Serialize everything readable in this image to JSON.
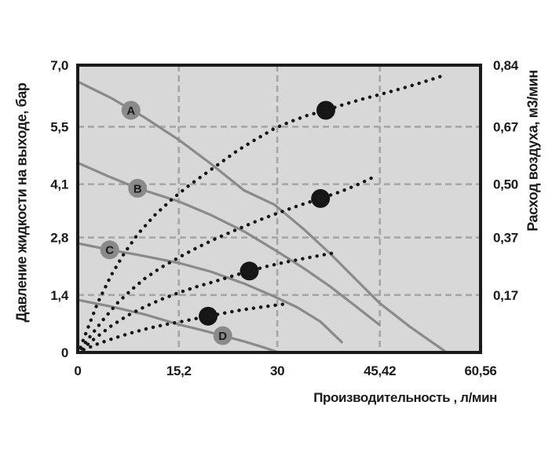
{
  "chart_data": {
    "type": "line",
    "title": "",
    "xlabel": "Производительность , л/мин",
    "ylabel_left": "Давление жидкости на выходе, бар",
    "ylabel_right": "Расход воздуха, м3/мин",
    "x_axis": {
      "min": 0,
      "max": 60.56,
      "ticks": [
        {
          "v": 0,
          "label": "0"
        },
        {
          "v": 15.2,
          "label": "15,2"
        },
        {
          "v": 30,
          "label": "30"
        },
        {
          "v": 45.42,
          "label": "45,42"
        },
        {
          "v": 60.56,
          "label": "60,56"
        }
      ]
    },
    "y_left": {
      "min": 0,
      "max": 7.0,
      "ticks": [
        {
          "v": 7.0,
          "label": "7,0"
        },
        {
          "v": 5.5,
          "label": "5,5"
        },
        {
          "v": 4.1,
          "label": "4,1"
        },
        {
          "v": 2.8,
          "label": "2,8"
        },
        {
          "v": 1.4,
          "label": "1,4"
        },
        {
          "v": 0,
          "label": "0"
        }
      ]
    },
    "y_right": {
      "min": 0,
      "max": 0.84,
      "ticks": [
        {
          "at_left_value": 7.0,
          "label": "0,84"
        },
        {
          "at_left_value": 5.5,
          "label": "0,67"
        },
        {
          "at_left_value": 4.1,
          "label": "0,50"
        },
        {
          "at_left_value": 2.8,
          "label": "0,37"
        },
        {
          "at_left_value": 1.4,
          "label": "0,17"
        }
      ]
    },
    "gridlines": {
      "horizontal_at_left_values": [
        5.5,
        4.1,
        2.8,
        1.4
      ],
      "vertical_at_x_values": [
        15.2,
        30,
        45.42
      ]
    },
    "legend_position": "none",
    "grid": true,
    "series": [
      {
        "id": "A",
        "kind": "pressure",
        "style": "solid",
        "axis": "left",
        "marker": {
          "x": 8.0,
          "y": 5.9,
          "fill": "gray"
        },
        "points": [
          [
            0,
            6.6
          ],
          [
            5,
            6.2
          ],
          [
            10,
            5.73
          ],
          [
            15.2,
            5.18
          ],
          [
            20,
            4.6
          ],
          [
            25,
            3.95
          ],
          [
            29.6,
            3.6
          ],
          [
            34,
            3.0
          ],
          [
            38,
            2.4
          ],
          [
            42,
            1.75
          ],
          [
            45.4,
            1.2
          ],
          [
            50,
            0.62
          ],
          [
            55.2,
            0.03
          ]
        ]
      },
      {
        "id": "B",
        "kind": "pressure",
        "style": "solid",
        "axis": "left",
        "marker": {
          "x": 9.0,
          "y": 4.0,
          "fill": "gray"
        },
        "points": [
          [
            0,
            4.62
          ],
          [
            4.5,
            4.3
          ],
          [
            9,
            4.0
          ],
          [
            15.2,
            3.68
          ],
          [
            20,
            3.35
          ],
          [
            25,
            2.95
          ],
          [
            29.6,
            2.5
          ],
          [
            34,
            2.05
          ],
          [
            38,
            1.6
          ],
          [
            42,
            1.1
          ],
          [
            45.3,
            0.68
          ]
        ]
      },
      {
        "id": "C",
        "kind": "pressure",
        "style": "solid",
        "axis": "left",
        "marker": {
          "x": 4.8,
          "y": 2.5,
          "fill": "gray"
        },
        "points": [
          [
            0,
            2.66
          ],
          [
            4.8,
            2.5
          ],
          [
            9,
            2.38
          ],
          [
            15.2,
            2.18
          ],
          [
            20,
            1.97
          ],
          [
            25,
            1.68
          ],
          [
            29.6,
            1.36
          ],
          [
            33,
            1.1
          ],
          [
            36.5,
            0.75
          ],
          [
            39.7,
            0.25
          ]
        ]
      },
      {
        "id": "D",
        "kind": "pressure",
        "style": "solid",
        "axis": "left",
        "marker": {
          "x": 21.8,
          "y": 0.41,
          "fill": "gray"
        },
        "points": [
          [
            0,
            1.28
          ],
          [
            5,
            1.12
          ],
          [
            10,
            0.93
          ],
          [
            15.2,
            0.68
          ],
          [
            18.5,
            0.55
          ],
          [
            21.8,
            0.41
          ],
          [
            25,
            0.27
          ],
          [
            28,
            0.12
          ],
          [
            29.9,
            0.02
          ]
        ]
      },
      {
        "id": "A",
        "kind": "air-consumption",
        "style": "dotted",
        "axis": "right",
        "marker": {
          "x": 37.3,
          "y": 0.708,
          "fill": "black"
        },
        "points": [
          [
            0.4,
            0.015
          ],
          [
            1.5,
            0.07
          ],
          [
            3,
            0.145
          ],
          [
            5,
            0.225
          ],
          [
            7,
            0.29
          ],
          [
            9,
            0.345
          ],
          [
            11.5,
            0.4
          ],
          [
            14,
            0.445
          ],
          [
            16.5,
            0.485
          ],
          [
            19,
            0.52
          ],
          [
            21.5,
            0.555
          ],
          [
            24,
            0.59
          ],
          [
            26.5,
            0.62
          ],
          [
            29.6,
            0.655
          ],
          [
            32,
            0.675
          ],
          [
            34.5,
            0.693
          ],
          [
            37.3,
            0.708
          ],
          [
            40,
            0.725
          ],
          [
            43,
            0.742
          ],
          [
            45.6,
            0.755
          ],
          [
            48,
            0.768
          ],
          [
            51,
            0.785
          ],
          [
            53,
            0.797
          ],
          [
            55,
            0.81
          ]
        ]
      },
      {
        "id": "B",
        "kind": "air-consumption",
        "style": "dotted",
        "axis": "right",
        "marker": {
          "x": 36.5,
          "y": 0.45,
          "fill": "black"
        },
        "points": [
          [
            0.5,
            0.012
          ],
          [
            2,
            0.05
          ],
          [
            4,
            0.1
          ],
          [
            6,
            0.145
          ],
          [
            8,
            0.182
          ],
          [
            10,
            0.215
          ],
          [
            12.5,
            0.248
          ],
          [
            15.2,
            0.278
          ],
          [
            18,
            0.307
          ],
          [
            21,
            0.335
          ],
          [
            24,
            0.36
          ],
          [
            27,
            0.385
          ],
          [
            30,
            0.407
          ],
          [
            33,
            0.428
          ],
          [
            36.5,
            0.45
          ],
          [
            39.5,
            0.47
          ],
          [
            42,
            0.49
          ],
          [
            44.4,
            0.512
          ]
        ]
      },
      {
        "id": "C",
        "kind": "air-consumption",
        "style": "dotted",
        "axis": "right",
        "marker": {
          "x": 25.8,
          "y": 0.238,
          "fill": "black"
        },
        "points": [
          [
            0.7,
            0.01
          ],
          [
            2.5,
            0.04
          ],
          [
            5,
            0.077
          ],
          [
            7.5,
            0.108
          ],
          [
            10,
            0.133
          ],
          [
            12.5,
            0.155
          ],
          [
            15.2,
            0.175
          ],
          [
            18,
            0.193
          ],
          [
            20.5,
            0.207
          ],
          [
            23,
            0.222
          ],
          [
            25.8,
            0.238
          ],
          [
            28.5,
            0.252
          ],
          [
            31,
            0.263
          ],
          [
            33.5,
            0.273
          ],
          [
            36,
            0.282
          ],
          [
            38.5,
            0.291
          ]
        ]
      },
      {
        "id": "D",
        "kind": "air-consumption",
        "style": "dotted",
        "axis": "right",
        "marker": {
          "x": 19.6,
          "y": 0.106,
          "fill": "black"
        },
        "points": [
          [
            0.9,
            0.008
          ],
          [
            3,
            0.025
          ],
          [
            5.5,
            0.042
          ],
          [
            8,
            0.057
          ],
          [
            10.5,
            0.07
          ],
          [
            13,
            0.081
          ],
          [
            15.5,
            0.09
          ],
          [
            17.5,
            0.098
          ],
          [
            19.6,
            0.106
          ],
          [
            22,
            0.115
          ],
          [
            24.5,
            0.124
          ],
          [
            27,
            0.131
          ],
          [
            29.3,
            0.137
          ],
          [
            31.6,
            0.143
          ]
        ]
      }
    ],
    "colors": {
      "plot_bg": "#d8d8d8",
      "border": "#1a1a1a",
      "grid": "#a6a6a6",
      "solid_curve": "#8a8a8a",
      "dotted_curve": "#161616",
      "marker_gray": "#8a8a8a",
      "marker_black": "#161616",
      "marker_letter": "#ffffff",
      "text": "#1a1a1a"
    }
  }
}
